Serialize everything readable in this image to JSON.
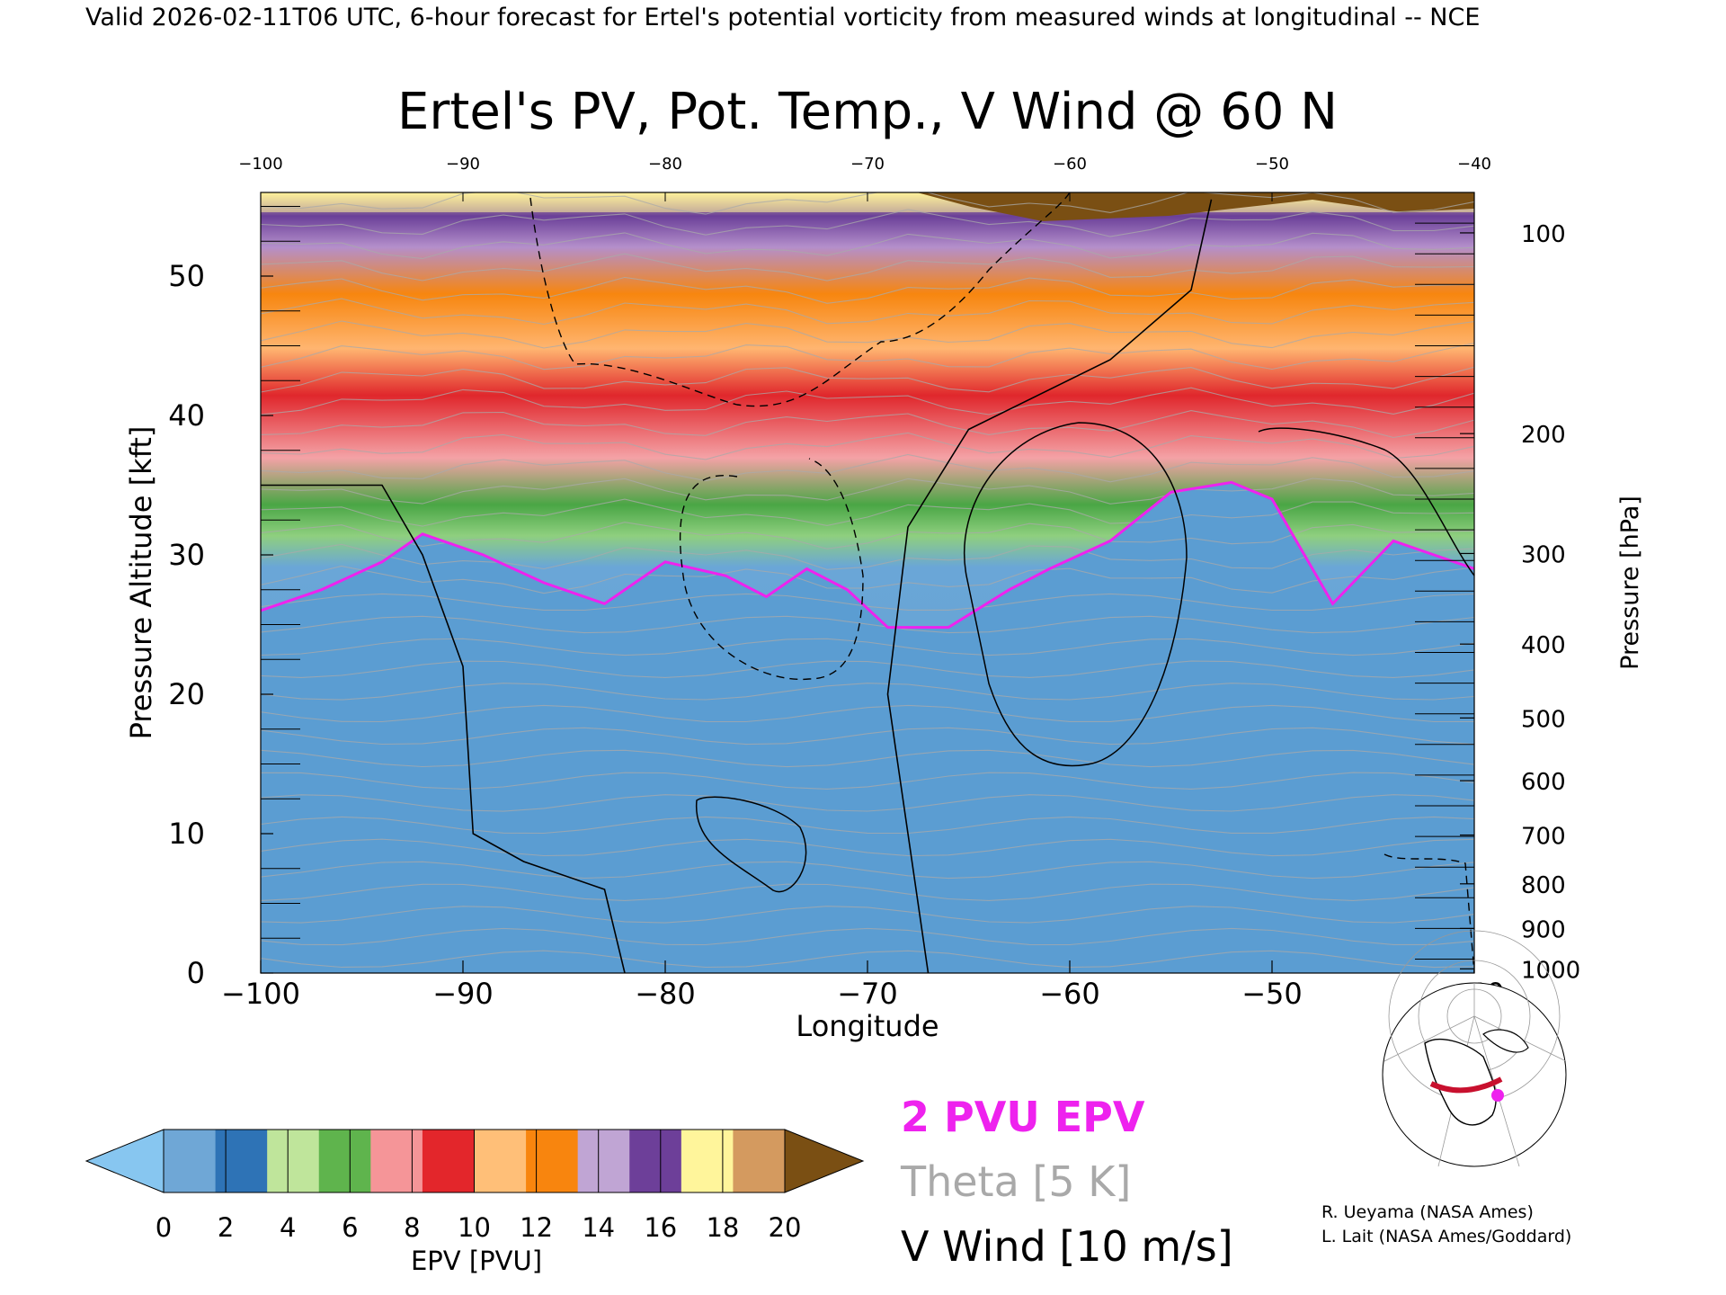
{
  "header": {
    "valid_line": "Valid 2026-02-11T06 UTC, 6-hour forecast for Ertel's potential vorticity from measured winds at longitudinal -- NCE"
  },
  "chart_data": {
    "type": "heatmap",
    "title": "Ertel's PV, Pot. Temp., V Wind @ 60 N",
    "xlabel": "Longitude",
    "ylabel_left": "Pressure Altitude [kft]",
    "ylabel_right": "Pressure [hPa]",
    "xlim": [
      -100,
      -40
    ],
    "ylim_kft": [
      0,
      56
    ],
    "x_ticks": [
      -100,
      -90,
      -80,
      -70,
      -60,
      -50,
      -40
    ],
    "x_tick_labels": [
      "−100",
      "−90",
      "−80",
      "−70",
      "−60",
      "−50",
      "−40"
    ],
    "top_tick_labels": [
      "−100",
      "−90",
      "−80",
      "−70",
      "−60",
      "−50",
      "−40"
    ],
    "y_ticks_kft": [
      0,
      10,
      20,
      30,
      40,
      50
    ],
    "pressure_ticks": [
      {
        "hpa": 100,
        "kft": 53.1
      },
      {
        "hpa": 200,
        "kft": 38.7
      },
      {
        "hpa": 300,
        "kft": 30.1
      },
      {
        "hpa": 400,
        "kft": 23.6
      },
      {
        "hpa": 500,
        "kft": 18.3
      },
      {
        "hpa": 600,
        "kft": 13.8
      },
      {
        "hpa": 700,
        "kft": 9.9
      },
      {
        "hpa": 800,
        "kft": 6.4
      },
      {
        "hpa": 900,
        "kft": 3.2
      },
      {
        "hpa": 1000,
        "kft": 0.3
      }
    ],
    "colorbar": {
      "label": "EPV [PVU]",
      "ticks": [
        "0",
        "2",
        "4",
        "6",
        "8",
        "10",
        "12",
        "14",
        "16",
        "18",
        "20"
      ],
      "under_color": "#87c6f0",
      "over_color": "#7a4f13",
      "colors": [
        "#6fa7d6",
        "#2e73b6",
        "#bfe59b",
        "#5fb44d",
        "#f59598",
        "#e3262b",
        "#ffbf78",
        "#f8850e",
        "#c0a5d4",
        "#6d3f99",
        "#fff59b",
        "#d49a5f"
      ]
    },
    "pv2_contour_kft": [
      {
        "lon": -100,
        "kft": 26.0
      },
      {
        "lon": -97,
        "kft": 27.5
      },
      {
        "lon": -94,
        "kft": 29.5
      },
      {
        "lon": -92,
        "kft": 31.5
      },
      {
        "lon": -89,
        "kft": 30.0
      },
      {
        "lon": -86,
        "kft": 28.0
      },
      {
        "lon": -83,
        "kft": 26.5
      },
      {
        "lon": -80,
        "kft": 29.5
      },
      {
        "lon": -77,
        "kft": 28.5
      },
      {
        "lon": -75,
        "kft": 27.0
      },
      {
        "lon": -73,
        "kft": 29.0
      },
      {
        "lon": -71,
        "kft": 27.5
      },
      {
        "lon": -69,
        "kft": 24.8
      },
      {
        "lon": -66,
        "kft": 24.8
      },
      {
        "lon": -63,
        "kft": 27.5
      },
      {
        "lon": -61,
        "kft": 29.0
      },
      {
        "lon": -58,
        "kft": 31.0
      },
      {
        "lon": -55,
        "kft": 34.5
      },
      {
        "lon": -52,
        "kft": 35.2
      },
      {
        "lon": -50,
        "kft": 34.0
      },
      {
        "lon": -47,
        "kft": 26.5
      },
      {
        "lon": -44,
        "kft": 31.0
      },
      {
        "lon": -40,
        "kft": 29.0
      }
    ],
    "zero_wind_contour": [
      {
        "lon": -100,
        "kft": 35.0
      },
      {
        "lon": -94,
        "kft": 35.0
      },
      {
        "lon": -92,
        "kft": 30.0
      },
      {
        "lon": -90,
        "kft": 22.0
      },
      {
        "lon": -89.5,
        "kft": 10.0
      },
      {
        "lon": -87,
        "kft": 8.0
      },
      {
        "lon": -83,
        "kft": 6.0
      },
      {
        "lon": -82,
        "kft": 0.0
      }
    ],
    "zero_wind_contour_east": [
      {
        "lon": -67,
        "kft": 0.0
      },
      {
        "lon": -69,
        "kft": 20.0
      },
      {
        "lon": -68,
        "kft": 32.0
      },
      {
        "lon": -65,
        "kft": 39.0
      },
      {
        "lon": -58,
        "kft": 44.0
      },
      {
        "lon": -54,
        "kft": 49.0
      },
      {
        "lon": -53,
        "kft": 55.5
      }
    ],
    "theta_levels": [
      "310",
      "320",
      "330",
      "340",
      "350",
      "360",
      "370",
      "380",
      "390",
      "400",
      "450",
      "470"
    ],
    "legend_entries": [
      {
        "label": "2 PVU EPV",
        "color": "#ee22ee"
      },
      {
        "label": "Theta [5 K]",
        "color": "#a9a9a9"
      },
      {
        "label": "V Wind [10 m/s]",
        "color": "#000000"
      }
    ]
  },
  "credits": {
    "line1": "R. Ueyama (NASA Ames)",
    "line2": "L. Lait (NASA Ames/Goddard)"
  },
  "inset_map": {
    "highlight_color": "#c8102e",
    "point_color": "#ee22ee"
  }
}
